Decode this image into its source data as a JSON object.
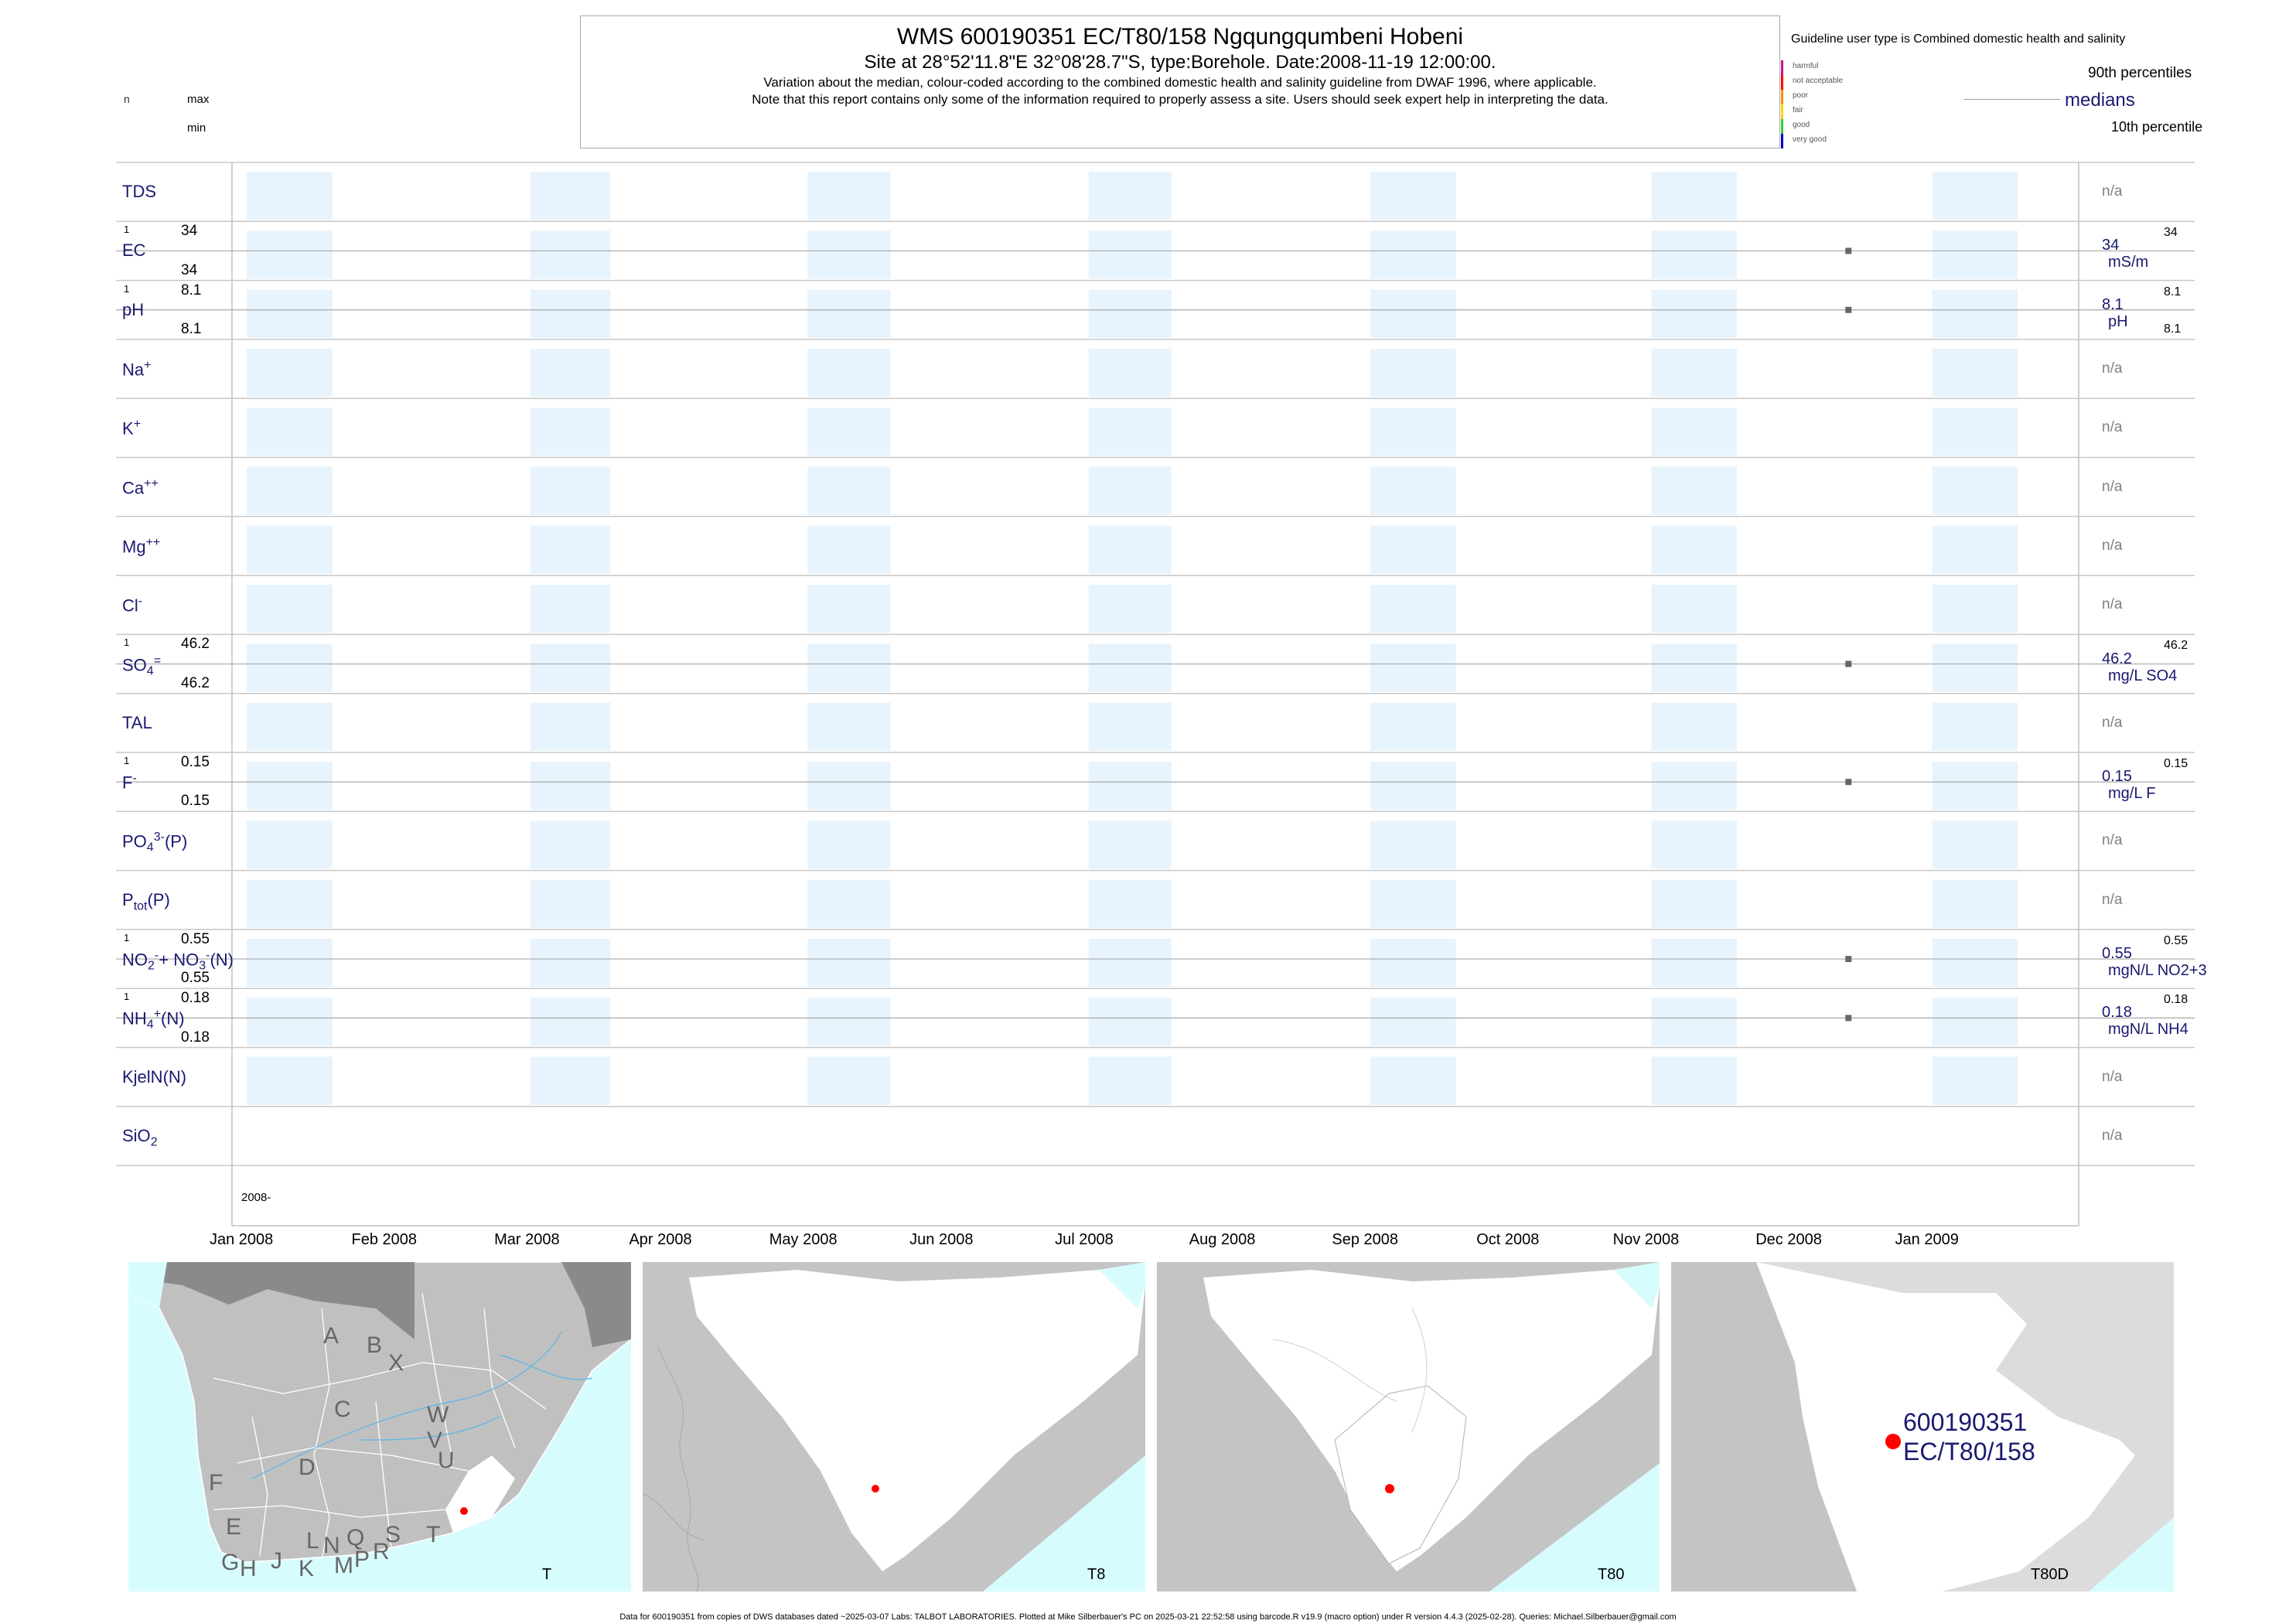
{
  "header": {
    "title": "WMS 600190351 EC/T80/158 Ngqungqumbeni Hobeni",
    "subtitle": "Site at 28°52'11.8\"E 32°08'28.7\"S, type:Borehole. Date:2008-11-19 12:00:00.",
    "note1": "Variation about the median,  colour-coded according to the combined domestic health and salinity guideline from DWAF 1996, where applicable.",
    "note2": "Note that this report contains only some of the information required to properly assess a site. Users should seek expert help in interpreting the data."
  },
  "left_legend": {
    "n": "n",
    "max": "max",
    "min": "min"
  },
  "right_legend": {
    "guideline": "Guideline user type is Combined domestic health and salinity",
    "p90": "90th percentiles",
    "medians": "medians",
    "p10": "10th percentile",
    "classes": [
      {
        "label": "harmful",
        "color": "#c71585"
      },
      {
        "label": "not acceptable",
        "color": "#ff0000"
      },
      {
        "label": "poor",
        "color": "#ff8c00"
      },
      {
        "label": "fair",
        "color": "#ffd700"
      },
      {
        "label": "good",
        "color": "#32cd32"
      },
      {
        "label": "very good",
        "color": "#0000cd"
      }
    ]
  },
  "chart_data": {
    "type": "scatter",
    "x_range": [
      "2007-12-04",
      "2009-01-08"
    ],
    "x_ticks": [
      "Jan 2008",
      "Feb 2008",
      "Mar 2008",
      "Apr 2008",
      "May 2008",
      "Jun 2008",
      "Jul 2008",
      "Aug 2008",
      "Sep 2008",
      "Oct 2008",
      "Nov 2008",
      "Dec 2008",
      "Jan 2009"
    ],
    "year_label": "2008-",
    "sample_date": "2008-11-19",
    "panels": [
      {
        "label": "TDS",
        "html": "TDS",
        "has_data": false,
        "na": "n/a"
      },
      {
        "label": "EC",
        "html": "EC",
        "has_data": true,
        "n": "1",
        "max": "34",
        "min": "34",
        "median": "34",
        "p90": "34",
        "unit": "mS/m",
        "value": 34
      },
      {
        "label": "pH",
        "html": "pH",
        "has_data": true,
        "n": "1",
        "max": "8.1",
        "min": "8.1",
        "median": "8.1",
        "p90": "8.1",
        "p10": "8.1",
        "unit": "pH",
        "value": 8.1
      },
      {
        "label": "Na+",
        "html": "Na<sup class='small'>+</sup>",
        "has_data": false,
        "na": "n/a"
      },
      {
        "label": "K+",
        "html": "K<sup class='small'>+</sup>",
        "has_data": false,
        "na": "n/a"
      },
      {
        "label": "Ca++",
        "html": "Ca<sup class='small'>++</sup>",
        "has_data": false,
        "na": "n/a"
      },
      {
        "label": "Mg++",
        "html": "Mg<sup class='small'>++</sup>",
        "has_data": false,
        "na": "n/a"
      },
      {
        "label": "Cl-",
        "html": "Cl<sup class='small'>-</sup>",
        "has_data": false,
        "na": "n/a"
      },
      {
        "label": "SO4=",
        "html": "SO<sub class='small'>4</sub><sup class='small'>=</sup>",
        "has_data": true,
        "n": "1",
        "max": "46.2",
        "min": "46.2",
        "median": "46.2",
        "p90": "46.2",
        "unit": "mg/L SO4",
        "value": 46.2
      },
      {
        "label": "TAL",
        "html": "TAL",
        "has_data": false,
        "na": "n/a"
      },
      {
        "label": "F-",
        "html": "F<sup class='small'>-</sup>",
        "has_data": true,
        "n": "1",
        "max": "0.15",
        "min": "0.15",
        "median": "0.15",
        "p90": "0.15",
        "unit": "mg/L F",
        "value": 0.15
      },
      {
        "label": "PO4(P)",
        "html": "PO<sub class='small'>4</sub><sup class='small'>3-</sup>(P)",
        "has_data": false,
        "na": "n/a"
      },
      {
        "label": "Ptot(P)",
        "html": "P<sub class='small'>tot</sub>(P)",
        "has_data": false,
        "na": "n/a"
      },
      {
        "label": "NO2+NO3(N)",
        "html": "NO<sub class='small'>2</sub><sup class='small'>-</sup>+ NO<sub class='small'>3</sub><sup class='small'>-</sup>(N)",
        "has_data": true,
        "n": "1",
        "max": "0.55",
        "min": "0.55",
        "median": "0.55",
        "p90": "0.55",
        "unit": "mgN/L NO2+3",
        "value": 0.55
      },
      {
        "label": "NH4(N)",
        "html": "NH<sub class='small'>4</sub><sup class='small'>+</sup>(N)",
        "has_data": true,
        "n": "1",
        "max": "0.18",
        "min": "0.18",
        "median": "0.18",
        "p90": "0.18",
        "unit": "mgN/L NH4",
        "value": 0.18
      },
      {
        "label": "KjelN(N)",
        "html": "KjelN(N)",
        "has_data": false,
        "na": "n/a"
      },
      {
        "label": "SiO2",
        "html": "SiO<sub class='small'>2</sub>",
        "has_data": false,
        "na": "n/a"
      }
    ]
  },
  "maps": [
    {
      "caption": "T",
      "letters": [
        "A",
        "B",
        "X",
        "W",
        "C",
        "V",
        "U",
        "D",
        "F",
        "E",
        "T",
        "G",
        "H",
        "J",
        "K",
        "L",
        "N",
        "M",
        "Q",
        "P",
        "R",
        "S"
      ]
    },
    {
      "caption": "T8"
    },
    {
      "caption": "T80"
    },
    {
      "caption": "T80D",
      "site_label_1": "600190351",
      "site_label_2": "EC/T80/158"
    }
  ],
  "colors": {
    "navy": "#191970",
    "grid": "#c0c0c0",
    "band": "#e8f4fd",
    "median_point": "#666666",
    "sea": "#d7fcfe",
    "land_grey": "#bfbfbf",
    "land_white": "#ffffff",
    "site_red": "#ff0000"
  },
  "footer": "Data for 600190351 from copies of DWS databases dated ~2025-03-07 Labs: TALBOT LABORATORIES. Plotted at Mike Silberbauer's PC on 2025-03-21 22:52:58 using barcode.R v19.9 (macro option) under R version 4.4.3 (2025-02-28). Queries: Michael.Silberbauer@gmail.com"
}
